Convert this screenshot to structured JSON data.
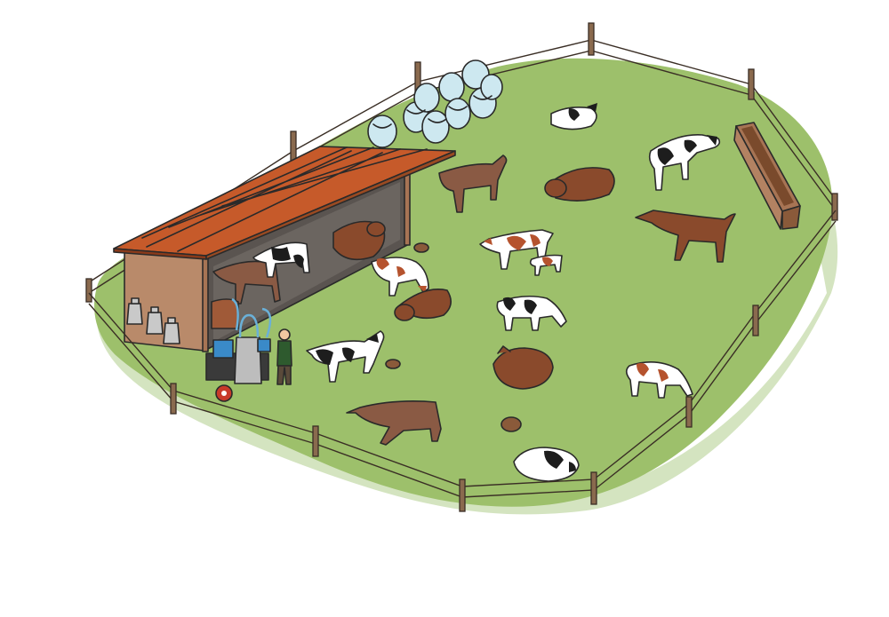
{
  "scene": {
    "subject": "cow-pasture-illustration",
    "colors": {
      "grass": "#9dc06b",
      "grass_shadow": "#c9ddb0",
      "roof": "#c65a2a",
      "shed_wall": "#b98a6a",
      "brown_cow": "#8a4a2c",
      "holstein_black": "#1d1d1d",
      "holstein_white": "#ffffff",
      "red_white_patch": "#b5532e",
      "hay_bale": "#cde8f0",
      "feeder": "#9a6a4a",
      "milk_can": "#c9c9c9"
    }
  }
}
